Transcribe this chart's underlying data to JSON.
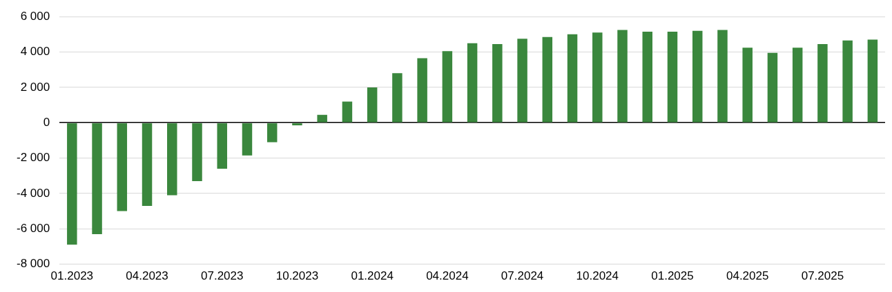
{
  "chart_data": {
    "type": "bar",
    "categories": [
      "01.2023",
      null,
      null,
      "04.2023",
      null,
      null,
      "07.2023",
      null,
      null,
      "10.2023",
      null,
      null,
      "01.2024",
      null,
      null,
      "04.2024",
      null,
      null,
      "07.2024",
      null,
      null,
      "10.2024",
      null,
      null,
      "01.2025",
      null,
      null,
      "04.2025",
      null,
      null,
      "07.2025",
      null,
      null
    ],
    "series": [
      {
        "color": "#3a873d",
        "values": [
          -6900,
          -6300,
          -5000,
          -4700,
          -4100,
          -3300,
          -2600,
          -1850,
          -1100,
          -150,
          450,
          1200,
          2000,
          2800,
          3650,
          4050,
          4500,
          4450,
          4750,
          4850,
          5000,
          5100,
          5250,
          5150,
          5150,
          5200,
          5250,
          4250,
          3950,
          4250,
          4450,
          4650,
          4700
        ]
      }
    ],
    "ylim": [
      -8000,
      6000
    ],
    "yticks": [
      {
        "value": -8000,
        "label": "-8 000"
      },
      {
        "value": -6000,
        "label": "-6 000"
      },
      {
        "value": -4000,
        "label": "-4 000"
      },
      {
        "value": -2000,
        "label": "-2 000"
      },
      0,
      {
        "value": 2000,
        "label": "2 000"
      },
      {
        "value": 4000,
        "label": "4 000"
      },
      {
        "value": 6000,
        "label": "6 000"
      }
    ],
    "grid": "y",
    "legend": false
  }
}
